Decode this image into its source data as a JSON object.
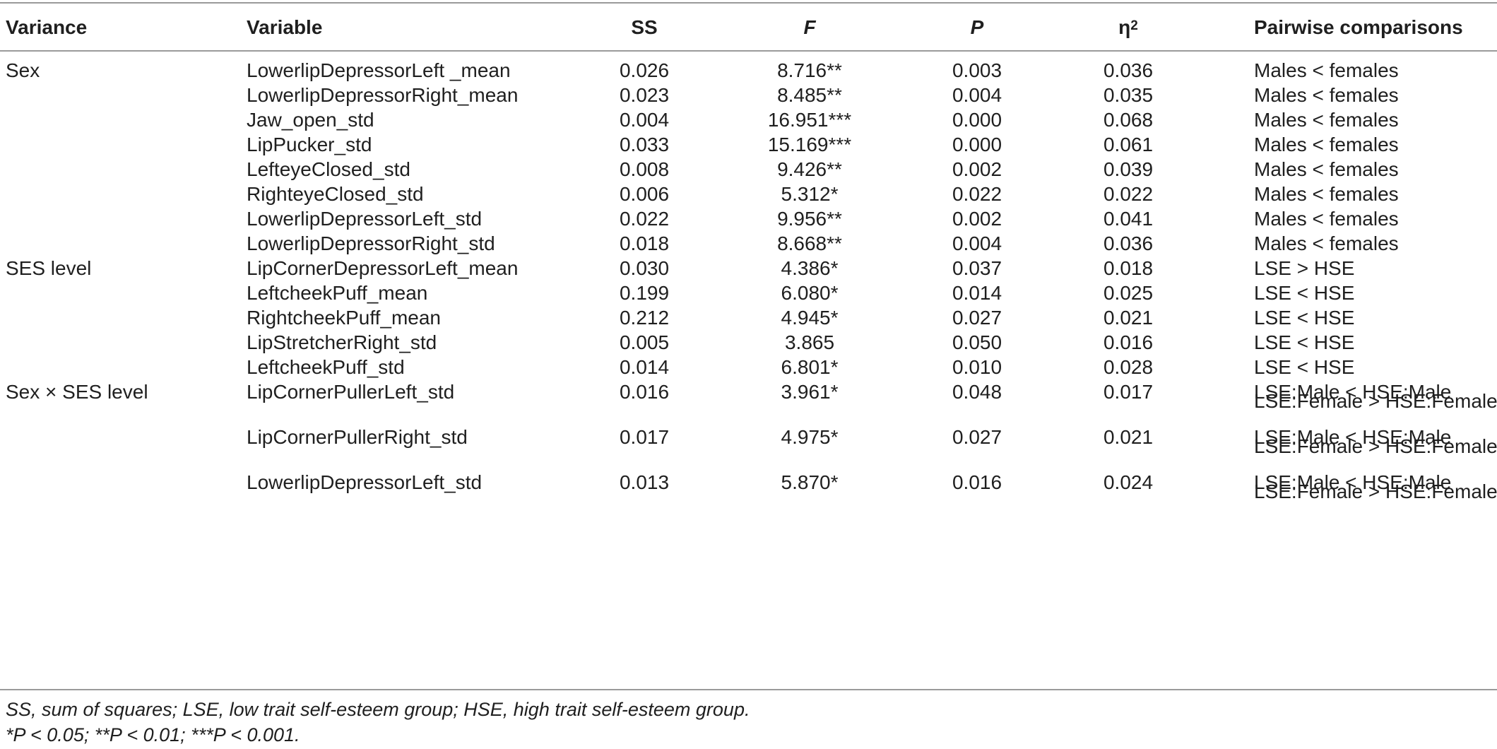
{
  "headers": {
    "variance": "Variance",
    "variable": "Variable",
    "ss": "SS",
    "f": "F",
    "p": "P",
    "eta": "η",
    "eta_sup": "2",
    "pairwise": "Pairwise comparisons"
  },
  "rows": [
    {
      "variance": "Sex",
      "variable": "LowerlipDepressorLeft _mean",
      "ss": "0.026",
      "f": "8.716**",
      "p": "0.003",
      "eta": "0.036",
      "pair1": "Males < females",
      "pair2": ""
    },
    {
      "variance": "",
      "variable": "LowerlipDepressorRight_mean",
      "ss": "0.023",
      "f": "8.485**",
      "p": "0.004",
      "eta": "0.035",
      "pair1": "Males < females",
      "pair2": ""
    },
    {
      "variance": "",
      "variable": "Jaw_open_std",
      "ss": "0.004",
      "f": "16.951***",
      "p": "0.000",
      "eta": "0.068",
      "pair1": "Males < females",
      "pair2": ""
    },
    {
      "variance": "",
      "variable": "LipPucker_std",
      "ss": "0.033",
      "f": "15.169***",
      "p": "0.000",
      "eta": "0.061",
      "pair1": "Males < females",
      "pair2": ""
    },
    {
      "variance": "",
      "variable": "LefteyeClosed_std",
      "ss": "0.008",
      "f": "9.426**",
      "p": "0.002",
      "eta": "0.039",
      "pair1": "Males < females",
      "pair2": ""
    },
    {
      "variance": "",
      "variable": "RighteyeClosed_std",
      "ss": "0.006",
      "f": "5.312*",
      "p": "0.022",
      "eta": "0.022",
      "pair1": "Males < females",
      "pair2": ""
    },
    {
      "variance": "",
      "variable": "LowerlipDepressorLeft_std",
      "ss": "0.022",
      "f": "9.956**",
      "p": "0.002",
      "eta": "0.041",
      "pair1": "Males < females",
      "pair2": ""
    },
    {
      "variance": "",
      "variable": "LowerlipDepressorRight_std",
      "ss": "0.018",
      "f": "8.668**",
      "p": "0.004",
      "eta": "0.036",
      "pair1": "Males < females",
      "pair2": ""
    },
    {
      "variance": "SES level",
      "variable": "LipCornerDepressorLeft_mean",
      "ss": "0.030",
      "f": "4.386*",
      "p": "0.037",
      "eta": "0.018",
      "pair1": "LSE > HSE",
      "pair2": ""
    },
    {
      "variance": "",
      "variable": "LeftcheekPuff_mean",
      "ss": "0.199",
      "f": "6.080*",
      "p": "0.014",
      "eta": "0.025",
      "pair1": "LSE < HSE",
      "pair2": ""
    },
    {
      "variance": "",
      "variable": "RightcheekPuff_mean",
      "ss": "0.212",
      "f": "4.945*",
      "p": "0.027",
      "eta": "0.021",
      "pair1": "LSE < HSE",
      "pair2": ""
    },
    {
      "variance": "",
      "variable": "LipStretcherRight_std",
      "ss": "0.005",
      "f": "3.865",
      "p": "0.050",
      "eta": "0.016",
      "pair1": "LSE < HSE",
      "pair2": ""
    },
    {
      "variance": "",
      "variable": "LeftcheekPuff_std",
      "ss": "0.014",
      "f": "6.801*",
      "p": "0.010",
      "eta": "0.028",
      "pair1": "LSE < HSE",
      "pair2": ""
    },
    {
      "variance": "Sex × SES level",
      "variable": "LipCornerPullerLeft_std",
      "ss": "0.016",
      "f": "3.961*",
      "p": "0.048",
      "eta": "0.017",
      "pair1": "LSE:Male < HSE:Male",
      "pair2": "LSE:Female > HSE:Female"
    },
    {
      "variance": "",
      "variable": "LipCornerPullerRight_std",
      "ss": "0.017",
      "f": "4.975*",
      "p": "0.027",
      "eta": "0.021",
      "pair1": "LSE:Male < HSE:Male",
      "pair2": "LSE:Female > HSE:Female"
    },
    {
      "variance": "",
      "variable": "LowerlipDepressorLeft_std",
      "ss": "0.013",
      "f": "5.870*",
      "p": "0.016",
      "eta": "0.024",
      "pair1": "LSE:Male < HSE:Male",
      "pair2": "LSE:Female > HSE:Female"
    }
  ],
  "footnotes": {
    "line1": "SS, sum of squares; LSE, low trait self-esteem group; HSE, high trait self-esteem group.",
    "line2": "*P < 0.05; **P < 0.01; ***P < 0.001."
  }
}
